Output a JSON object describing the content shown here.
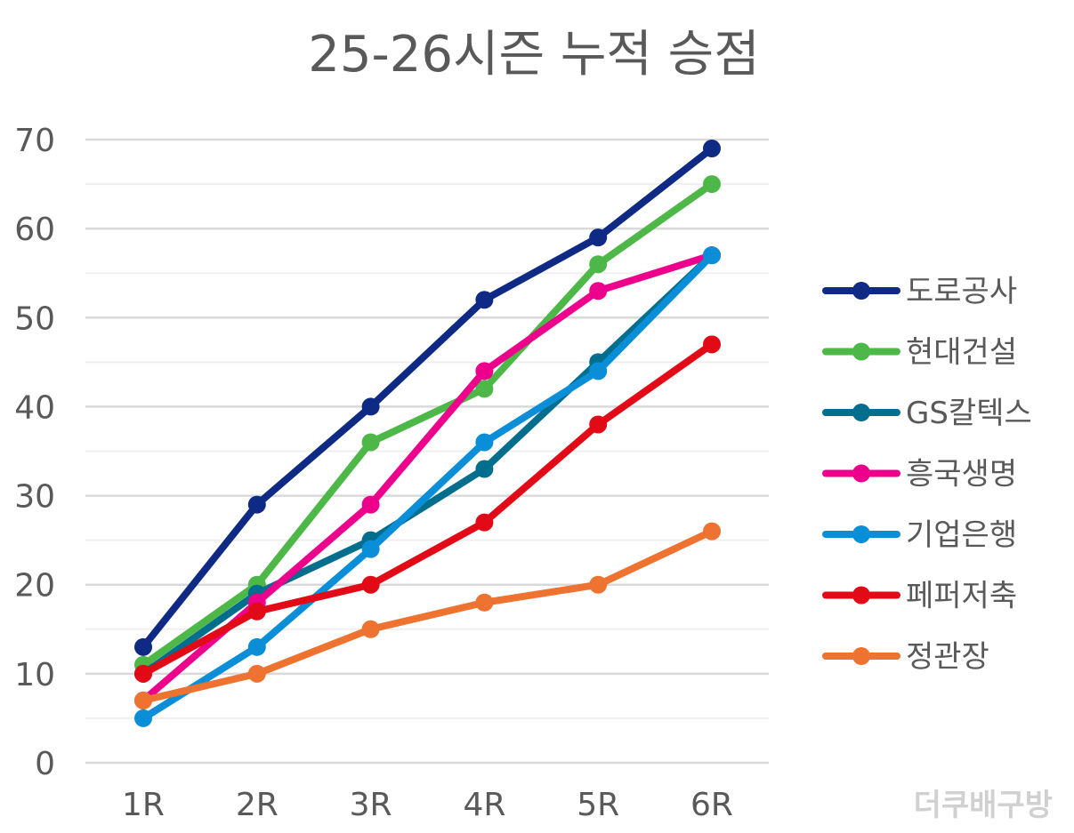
{
  "chart_data": {
    "type": "line",
    "title": "25-26시즌 누적 승점",
    "xlabel": "",
    "ylabel": "",
    "categories": [
      "1R",
      "2R",
      "3R",
      "4R",
      "5R",
      "6R"
    ],
    "ylim": [
      0,
      70
    ],
    "yticks": [
      0,
      10,
      20,
      30,
      40,
      50,
      60,
      70
    ],
    "grid": true,
    "legend_position": "right",
    "series": [
      {
        "name": "도로공사",
        "color": "#0F2A84",
        "values": [
          13,
          29,
          40,
          52,
          59,
          69
        ]
      },
      {
        "name": "현대건설",
        "color": "#4DB848",
        "values": [
          11,
          20,
          36,
          42,
          56,
          65
        ]
      },
      {
        "name": "GS칼텍스",
        "color": "#006E8C",
        "values": [
          10,
          19,
          25,
          33,
          45,
          57
        ]
      },
      {
        "name": "흥국생명",
        "color": "#EC008C",
        "values": [
          7,
          18,
          29,
          44,
          53,
          57
        ]
      },
      {
        "name": "기업은행",
        "color": "#0A8ED8",
        "values": [
          5,
          13,
          24,
          36,
          44,
          57
        ]
      },
      {
        "name": "페퍼저축",
        "color": "#E30A17",
        "values": [
          10,
          17,
          20,
          27,
          38,
          47
        ]
      },
      {
        "name": "정관장",
        "color": "#EE7230",
        "values": [
          7,
          10,
          15,
          18,
          20,
          26
        ]
      }
    ],
    "watermark": "더쿠배구방"
  }
}
